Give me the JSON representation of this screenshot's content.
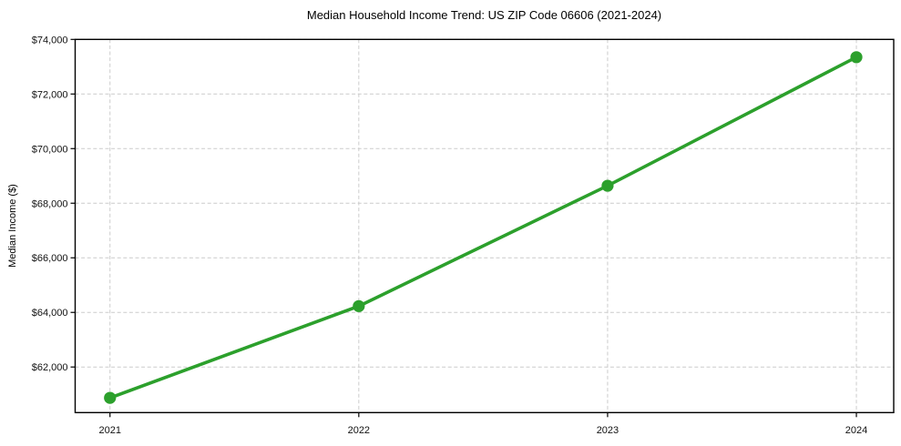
{
  "chart_data": {
    "type": "line",
    "title": "Median Household Income Trend: US ZIP Code 06606 (2021-2024)",
    "xlabel": "",
    "ylabel": "Median Income ($)",
    "x": [
      2021,
      2022,
      2023,
      2024
    ],
    "x_tick_labels": [
      "2021",
      "2022",
      "2023",
      "2024"
    ],
    "series": [
      {
        "name": "Median Household Income",
        "values": [
          60870,
          64230,
          68640,
          73350
        ]
      }
    ],
    "y_ticks": [
      62000,
      64000,
      66000,
      68000,
      70000,
      72000,
      74000
    ],
    "y_tick_labels": [
      "$62,000",
      "$64,000",
      "$66,000",
      "$68,000",
      "$70,000",
      "$72,000",
      "$74,000"
    ],
    "ylim": [
      60330,
      74000
    ],
    "xlim": [
      2020.86,
      2024.15
    ],
    "grid": true,
    "legend": false,
    "marker": "circle",
    "colors": {
      "line": "#2ca02c",
      "marker": "#2ca02c",
      "grid": "#cccccc",
      "axis": "#000000",
      "text": "#111111",
      "background": "#ffffff"
    }
  }
}
